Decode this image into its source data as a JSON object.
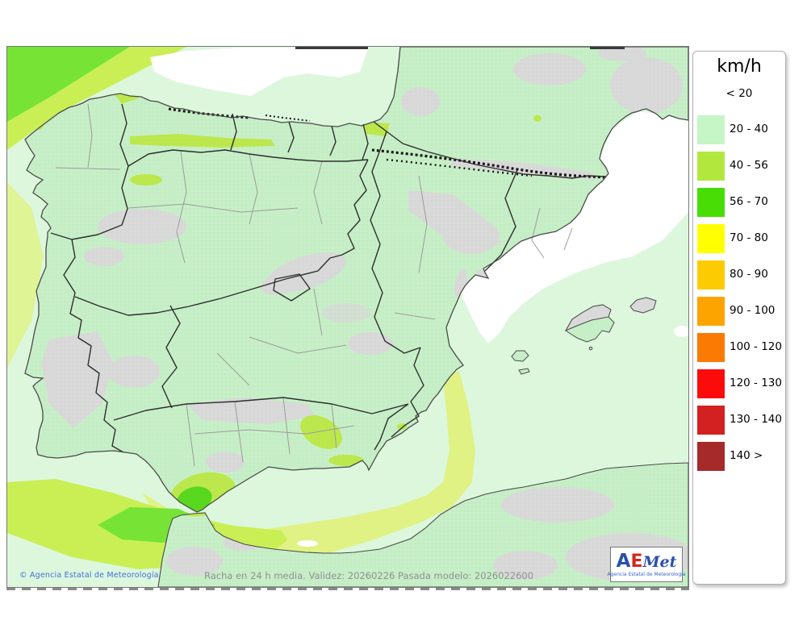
{
  "legend": {
    "title": "km/h",
    "entries": [
      {
        "label": "< 20",
        "color": null
      },
      {
        "label": "20 - 40",
        "color": "#c6f5c6"
      },
      {
        "label": "40 - 56",
        "color": "#b2e83e"
      },
      {
        "label": "56 - 70",
        "color": "#48dd04"
      },
      {
        "label": "70 - 80",
        "color": "#ffff02"
      },
      {
        "label": "80 - 90",
        "color": "#fdcb02"
      },
      {
        "label": "90 - 100",
        "color": "#fda400"
      },
      {
        "label": "100 - 120",
        "color": "#fa7a04"
      },
      {
        "label": "120 - 130",
        "color": "#fc0b0b"
      },
      {
        "label": "130 - 140",
        "color": "#d32020"
      },
      {
        "label": "140 >",
        "color": "#a62a2a"
      }
    ]
  },
  "footer": {
    "copyright": "© Agencia Estatal de Meteorología",
    "model_info": "Racha en 24 h media. Validez: 20260226 Pasada modelo: 2026022600"
  },
  "logo": {
    "text_a": "A",
    "text_e": "E",
    "text_met": "Met",
    "subtitle": "Agencia Estatal de Meteorología"
  },
  "map": {
    "colors": {
      "sea": "#ddf7dd",
      "land": "#c7efc7",
      "land_gray": "#d9d9d9",
      "band_light": "#dff283",
      "band_yellow_green": "#c9ef55",
      "band_green": "#76e335",
      "land_yellow": "#bce84c",
      "land_green_patch": "#58d81c",
      "coast": "#4a4a4a",
      "border_region": "#2e2e2e",
      "border_province": "#9c9c9c",
      "frame": "#777777"
    }
  }
}
